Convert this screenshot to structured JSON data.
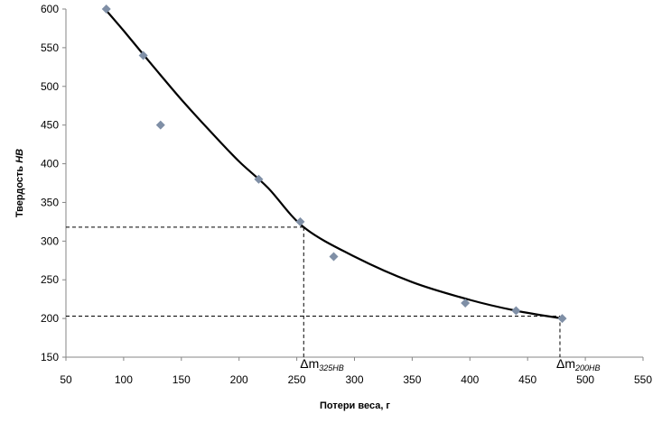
{
  "chart_data": {
    "type": "scatter",
    "xlabel": "Потери веса, г",
    "ylabel_main": "Твердость ",
    "ylabel_italic": "HB",
    "xlim": [
      50,
      550
    ],
    "ylim": [
      150,
      600
    ],
    "xticks": [
      50,
      100,
      150,
      200,
      250,
      300,
      350,
      400,
      450,
      500,
      550
    ],
    "yticks": [
      150,
      200,
      250,
      300,
      350,
      400,
      450,
      500,
      550,
      600
    ],
    "grid": false,
    "legend": "none",
    "marker_color": "#7f8fa6",
    "trend_color": "#000000",
    "points": [
      {
        "x": 85,
        "y": 600
      },
      {
        "x": 117,
        "y": 540
      },
      {
        "x": 132,
        "y": 450
      },
      {
        "x": 217,
        "y": 380
      },
      {
        "x": 253,
        "y": 325
      },
      {
        "x": 282,
        "y": 280
      },
      {
        "x": 396,
        "y": 220
      },
      {
        "x": 440,
        "y": 210
      },
      {
        "x": 480,
        "y": 200
      }
    ],
    "trendline": {
      "type": "smooth",
      "x": [
        85,
        100,
        125,
        150,
        175,
        200,
        225,
        256,
        300,
        350,
        400,
        440,
        480
      ],
      "y": [
        598,
        572,
        527,
        483,
        442,
        403,
        369,
        318,
        280,
        247,
        224,
        210,
        200
      ]
    },
    "reference_lines": [
      {
        "x": 256,
        "y": 318,
        "label_main": "Δm",
        "label_sub": "325HB"
      },
      {
        "x": 478,
        "y": 203,
        "label_main": "Δm",
        "label_sub": "200HB"
      }
    ]
  }
}
